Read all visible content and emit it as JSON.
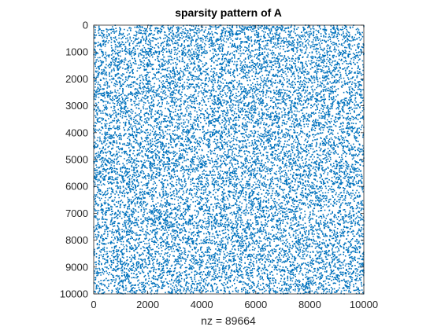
{
  "chart_data": {
    "type": "scatter",
    "subtype": "sparsity-pattern",
    "title": "sparsity pattern of A",
    "xlabel": "nz = 89664",
    "ylabel": "",
    "nz": 89664,
    "matrix_size": [
      10000,
      10000
    ],
    "xlim": [
      0,
      10000
    ],
    "ylim": [
      0,
      10000
    ],
    "y_reversed": true,
    "x_ticks": [
      0,
      2000,
      4000,
      6000,
      8000,
      10000
    ],
    "y_ticks": [
      0,
      1000,
      2000,
      3000,
      4000,
      5000,
      6000,
      7000,
      8000,
      9000,
      10000
    ],
    "x_tick_labels": [
      "0",
      "2000",
      "4000",
      "6000",
      "8000",
      "10000"
    ],
    "y_tick_labels": [
      "0",
      "1000",
      "2000",
      "3000",
      "4000",
      "5000",
      "6000",
      "7000",
      "8000",
      "9000",
      "10000"
    ],
    "distribution": "uniform-random",
    "grid": false,
    "marker_color": "#0072BD",
    "axis_color": "#262626",
    "background": "#ffffff"
  }
}
